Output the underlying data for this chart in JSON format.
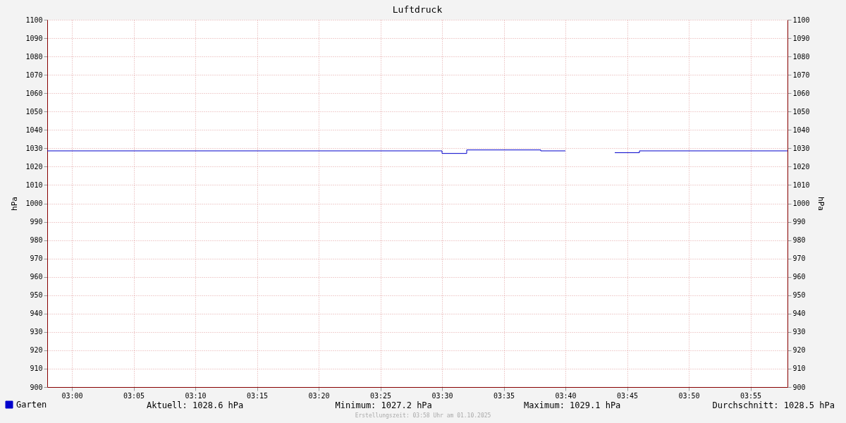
{
  "chart_data": {
    "type": "step",
    "title": "Luftdruck",
    "ylabel": "hPa",
    "y2label": "hPa",
    "x": [
      "2025-10-01T02:58",
      "2025-10-01T03:30",
      "2025-10-01T03:32",
      "2025-10-01T03:38",
      "2025-10-01T03:40",
      "2025-10-01T03:41",
      "2025-10-01T03:44",
      "2025-10-01T03:46",
      "2025-10-01T03:58"
    ],
    "series": [
      {
        "name": "Garten",
        "color": "#0000cc",
        "values": [
          1028.6,
          1027.2,
          1029.1,
          1028.6,
          1028.6,
          null,
          1027.6,
          1028.6,
          1028.6
        ]
      }
    ],
    "xlim": [
      "2025-10-01T02:58",
      "2025-10-01T03:58"
    ],
    "xticks": [
      {
        "value": "2025-10-01T03:00",
        "label": "03:00"
      },
      {
        "value": "2025-10-01T03:05",
        "label": "03:05"
      },
      {
        "value": "2025-10-01T03:10",
        "label": "03:10"
      },
      {
        "value": "2025-10-01T03:15",
        "label": "03:15"
      },
      {
        "value": "2025-10-01T03:20",
        "label": "03:20"
      },
      {
        "value": "2025-10-01T03:25",
        "label": "03:25"
      },
      {
        "value": "2025-10-01T03:30",
        "label": "03:30"
      },
      {
        "value": "2025-10-01T03:35",
        "label": "03:35"
      },
      {
        "value": "2025-10-01T03:40",
        "label": "03:40"
      },
      {
        "value": "2025-10-01T03:45",
        "label": "03:45"
      },
      {
        "value": "2025-10-01T03:50",
        "label": "03:50"
      },
      {
        "value": "2025-10-01T03:55",
        "label": "03:55"
      }
    ],
    "ylim": [
      900,
      1100
    ],
    "yticks": [
      900,
      910,
      920,
      930,
      940,
      950,
      960,
      970,
      980,
      990,
      1000,
      1010,
      1020,
      1030,
      1040,
      1050,
      1060,
      1070,
      1080,
      1090,
      1100
    ],
    "y2lim": [
      900,
      1100
    ],
    "y2ticks": [
      900,
      910,
      920,
      930,
      940,
      950,
      960,
      970,
      980,
      990,
      1000,
      1010,
      1020,
      1030,
      1040,
      1050,
      1060,
      1070,
      1080,
      1090,
      1100
    ],
    "grid": true,
    "legend": "bottom left",
    "marker": "none",
    "line_style": "solid",
    "annotations": [
      "Aktuell: 1028.6 hPa",
      "Minimum: 1027.2 hPa",
      "Maximum: 1029.1 hPa",
      "Durchschnitt: 1028.5 hPa",
      "Erstellungszeit: 03:58 Uhr am 01.10.2025"
    ]
  }
}
